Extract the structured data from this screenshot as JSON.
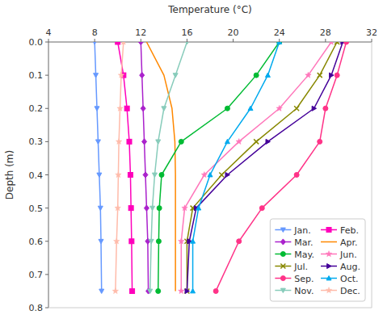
{
  "chart_data": {
    "type": "line",
    "x_label": "Temperature (°C)",
    "y_label": "Depth (m)",
    "xlim": [
      4,
      32
    ],
    "ylim": [
      0.8,
      0.0
    ],
    "xticks": [
      4,
      8,
      12,
      16,
      20,
      24,
      28,
      32
    ],
    "yticks": [
      {
        "value": 0.0,
        "label": "0.0"
      },
      0.1,
      0.2,
      0.3,
      0.4,
      0.5,
      0.6,
      0.7,
      0.8
    ],
    "grid": false,
    "legend": "lower right",
    "series": [
      {
        "name": "Jan.",
        "color": "#6699ff",
        "marker": "triangle-down",
        "x": [
          8.0,
          8.1,
          8.2,
          8.3,
          8.4,
          8.5,
          8.55,
          8.6
        ],
        "values": [
          0.0,
          0.1,
          0.2,
          0.3,
          0.4,
          0.5,
          0.6,
          0.75
        ]
      },
      {
        "name": "Feb.",
        "color": "#ff00bb",
        "marker": "square",
        "x": [
          10.0,
          10.5,
          10.8,
          11.0,
          11.1,
          11.15,
          11.2,
          11.25
        ],
        "values": [
          0.0,
          0.1,
          0.2,
          0.3,
          0.4,
          0.5,
          0.6,
          0.75
        ]
      },
      {
        "name": "Mar.",
        "color": "#aa22cc",
        "marker": "diamond",
        "x": [
          12.0,
          12.1,
          12.2,
          12.3,
          12.4,
          12.5,
          12.6,
          12.65
        ],
        "values": [
          0.0,
          0.1,
          0.2,
          0.3,
          0.4,
          0.5,
          0.6,
          0.75
        ]
      },
      {
        "name": "Apr.",
        "color": "#ff8800",
        "marker": "none",
        "x": [
          12.5,
          14.0,
          14.7,
          14.95,
          15.0,
          15.0,
          15.0,
          15.0
        ],
        "values": [
          0.0,
          0.1,
          0.2,
          0.3,
          0.4,
          0.5,
          0.6,
          0.75
        ]
      },
      {
        "name": "May.",
        "color": "#00bb33",
        "marker": "circle",
        "x": [
          24.0,
          22.0,
          19.5,
          15.5,
          13.8,
          13.6,
          13.55,
          13.5
        ],
        "values": [
          0.0,
          0.1,
          0.2,
          0.3,
          0.4,
          0.5,
          0.6,
          0.75
        ]
      },
      {
        "name": "Jun.",
        "color": "#ff77bb",
        "marker": "star",
        "x": [
          28.5,
          26.5,
          24.0,
          20.5,
          17.5,
          15.8,
          15.5,
          15.5
        ],
        "values": [
          0.0,
          0.1,
          0.2,
          0.3,
          0.4,
          0.5,
          0.6,
          0.75
        ]
      },
      {
        "name": "Jul.",
        "color": "#888800",
        "marker": "x",
        "x": [
          29.0,
          27.5,
          25.5,
          22.0,
          19.0,
          16.5,
          16.0,
          16.0
        ],
        "values": [
          0.0,
          0.1,
          0.2,
          0.3,
          0.4,
          0.5,
          0.6,
          0.75
        ]
      },
      {
        "name": "Aug.",
        "color": "#440099",
        "marker": "triangle-right",
        "x": [
          29.5,
          28.5,
          27.0,
          23.0,
          19.5,
          16.8,
          16.2,
          16.0
        ],
        "values": [
          0.0,
          0.1,
          0.2,
          0.3,
          0.4,
          0.5,
          0.6,
          0.75
        ]
      },
      {
        "name": "Sep.",
        "color": "#ff3388",
        "marker": "circle",
        "x": [
          29.8,
          29.0,
          28.0,
          27.5,
          25.5,
          22.5,
          20.5,
          18.5
        ],
        "values": [
          0.0,
          0.1,
          0.2,
          0.3,
          0.4,
          0.5,
          0.6,
          0.75
        ]
      },
      {
        "name": "Oct.",
        "color": "#00aaee",
        "marker": "triangle-up",
        "x": [
          24.0,
          23.0,
          21.5,
          19.5,
          18.0,
          17.0,
          16.5,
          16.5
        ],
        "values": [
          0.0,
          0.1,
          0.2,
          0.3,
          0.4,
          0.5,
          0.6,
          0.75
        ]
      },
      {
        "name": "Nov.",
        "color": "#88ccbb",
        "marker": "triangle-down",
        "x": [
          16.0,
          15.0,
          14.0,
          13.5,
          13.2,
          13.0,
          12.9,
          12.8
        ],
        "values": [
          0.0,
          0.1,
          0.2,
          0.3,
          0.4,
          0.5,
          0.6,
          0.75
        ]
      },
      {
        "name": "Dec.",
        "color": "#ffbbaa",
        "marker": "star",
        "x": [
          10.5,
          10.3,
          10.2,
          10.1,
          10.05,
          10.0,
          9.9,
          9.8
        ],
        "values": [
          0.0,
          0.1,
          0.2,
          0.3,
          0.4,
          0.5,
          0.6,
          0.75
        ]
      }
    ]
  }
}
